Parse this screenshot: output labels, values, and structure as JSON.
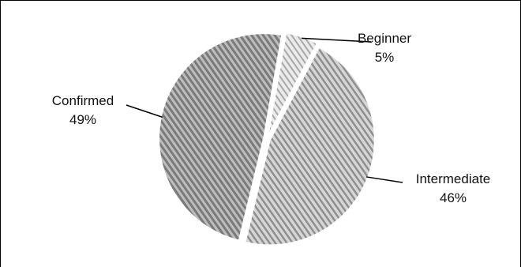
{
  "chart_data": {
    "type": "pie",
    "slices": [
      {
        "label": "Beginner",
        "value": 5,
        "value_text": "5%",
        "pattern": "light-diagonal"
      },
      {
        "label": "Intermediate",
        "value": 46,
        "value_text": "46%",
        "pattern": "medium-diagonal"
      },
      {
        "label": "Confirmed",
        "value": 49,
        "value_text": "49%",
        "pattern": "dark-diagonal"
      }
    ],
    "legend": "none",
    "labels": "outside-with-leader-lines",
    "colors": {
      "beginner_fill": "#e6e6e6",
      "intermediate_fill": "#d0d0d0",
      "confirmed_fill": "#b5b5b5",
      "stripe": "#8c8c8c"
    }
  }
}
